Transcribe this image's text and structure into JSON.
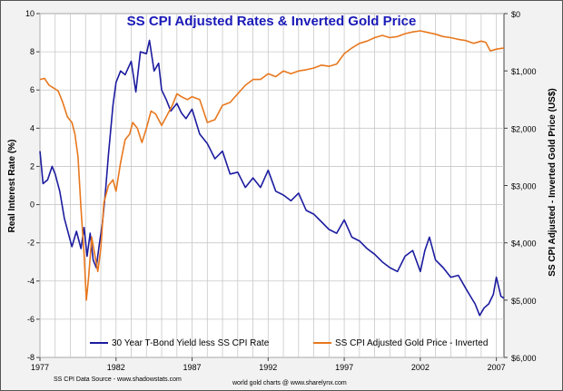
{
  "chart_data": {
    "type": "line",
    "title": "SS CPI Adjusted Rates & Inverted Gold Price",
    "ylabel": "Real Interest Rate (%)",
    "y2label": "SS CPI Adjusted - Inverted Gold Price (US$)",
    "xlim": [
      1977,
      2007.5
    ],
    "ylim": [
      -8,
      10
    ],
    "y2lim": [
      6000,
      0
    ],
    "x_ticks": [
      "1977",
      "1982",
      "1987",
      "1992",
      "1997",
      "2002",
      "2007"
    ],
    "y_ticks": [
      "10",
      "8",
      "6",
      "4",
      "2",
      "0",
      "-2",
      "-4",
      "-6",
      "-8"
    ],
    "y2_ticks": [
      "$0",
      "$1,000",
      "$2,000",
      "$3,000",
      "$4,000",
      "$5,000",
      "$6,000"
    ],
    "grid": true,
    "legend_position": "bottom",
    "series": [
      {
        "name": "30 Year T-Bond Yield less SS CPI Rate",
        "color": "#1c1ca0",
        "axis": "left",
        "x": [
          1977.0,
          1977.2,
          1977.5,
          1977.8,
          1978.0,
          1978.3,
          1978.6,
          1978.9,
          1979.1,
          1979.4,
          1979.7,
          1979.9,
          1980.1,
          1980.3,
          1980.5,
          1980.7,
          1980.9,
          1981.1,
          1981.3,
          1981.5,
          1981.8,
          1982.0,
          1982.3,
          1982.6,
          1983.0,
          1983.3,
          1983.6,
          1984.0,
          1984.2,
          1984.5,
          1984.8,
          1985.0,
          1985.3,
          1985.6,
          1986.0,
          1986.3,
          1986.6,
          1987.0,
          1987.5,
          1988.0,
          1988.5,
          1989.0,
          1989.5,
          1990.0,
          1990.5,
          1991.0,
          1991.5,
          1992.0,
          1992.5,
          1993.0,
          1993.5,
          1994.0,
          1994.5,
          1995.0,
          1995.5,
          1996.0,
          1996.5,
          1997.0,
          1997.5,
          1998.0,
          1998.5,
          1999.0,
          1999.5,
          2000.0,
          2000.5,
          2001.0,
          2001.5,
          2002.0,
          2002.3,
          2002.6,
          2003.0,
          2003.5,
          2004.0,
          2004.5,
          2005.0,
          2005.3,
          2005.6,
          2005.9,
          2006.2,
          2006.5,
          2006.8,
          2007.0,
          2007.3,
          2007.5
        ],
        "values": [
          2.8,
          1.1,
          1.3,
          2.0,
          1.6,
          0.7,
          -0.7,
          -1.6,
          -2.2,
          -1.4,
          -2.3,
          -1.2,
          -2.7,
          -1.5,
          -2.9,
          -3.3,
          -2.1,
          -1.0,
          0.6,
          2.6,
          5.2,
          6.4,
          7.0,
          6.8,
          7.5,
          5.9,
          8.0,
          7.9,
          8.6,
          7.0,
          7.4,
          6.0,
          5.5,
          4.9,
          5.3,
          4.8,
          4.5,
          5.0,
          3.7,
          3.2,
          2.4,
          2.8,
          1.6,
          1.7,
          0.9,
          1.4,
          0.9,
          1.8,
          0.7,
          0.5,
          0.2,
          0.6,
          -0.3,
          -0.5,
          -0.9,
          -1.3,
          -1.5,
          -0.8,
          -1.7,
          -1.9,
          -2.3,
          -2.6,
          -3.0,
          -3.3,
          -3.5,
          -2.7,
          -2.4,
          -3.5,
          -2.4,
          -1.7,
          -2.9,
          -3.3,
          -3.8,
          -3.7,
          -4.4,
          -4.8,
          -5.2,
          -5.8,
          -5.4,
          -5.2,
          -4.7,
          -3.8,
          -4.8,
          -4.9
        ]
      },
      {
        "name": "SS CPI Adjusted Gold Price - Inverted",
        "color": "#e8781e",
        "axis": "right",
        "x": [
          1977.0,
          1977.3,
          1977.6,
          1977.9,
          1978.2,
          1978.5,
          1978.8,
          1979.1,
          1979.3,
          1979.5,
          1979.7,
          1979.9,
          1980.05,
          1980.2,
          1980.4,
          1980.6,
          1980.8,
          1981.0,
          1981.2,
          1981.5,
          1981.8,
          1982.0,
          1982.3,
          1982.6,
          1982.9,
          1983.1,
          1983.4,
          1983.7,
          1984.0,
          1984.3,
          1984.6,
          1985.0,
          1985.3,
          1985.7,
          1986.0,
          1986.3,
          1986.7,
          1987.0,
          1987.5,
          1988.0,
          1988.5,
          1989.0,
          1989.5,
          1990.0,
          1990.5,
          1991.0,
          1991.5,
          1992.0,
          1992.5,
          1993.0,
          1993.5,
          1994.0,
          1994.5,
          1995.0,
          1995.5,
          1996.0,
          1996.5,
          1997.0,
          1997.5,
          1998.0,
          1998.5,
          1999.0,
          1999.5,
          2000.0,
          2000.5,
          2001.0,
          2001.5,
          2002.0,
          2002.5,
          2003.0,
          2003.5,
          2004.0,
          2004.5,
          2005.0,
          2005.5,
          2006.0,
          2006.3,
          2006.6,
          2007.0,
          2007.5
        ],
        "values": [
          1150,
          1130,
          1250,
          1300,
          1350,
          1550,
          1800,
          1900,
          2100,
          2500,
          3400,
          4200,
          5000,
          4600,
          3900,
          4200,
          4500,
          4100,
          3300,
          3000,
          2900,
          3100,
          2600,
          2200,
          2100,
          1900,
          2000,
          2250,
          2000,
          1700,
          1750,
          1950,
          1800,
          1600,
          1400,
          1450,
          1500,
          1450,
          1500,
          1900,
          1850,
          1600,
          1550,
          1400,
          1250,
          1150,
          1150,
          1050,
          1100,
          1000,
          1050,
          1000,
          980,
          950,
          900,
          920,
          880,
          700,
          600,
          520,
          480,
          420,
          380,
          420,
          400,
          350,
          320,
          300,
          330,
          360,
          400,
          420,
          450,
          470,
          520,
          480,
          500,
          650,
          620,
          600
        ]
      }
    ]
  },
  "footer": {
    "source": "SS CPI Data Source - www.shadowstats.com",
    "credit": "world gold charts @ www.sharelynx.com"
  }
}
